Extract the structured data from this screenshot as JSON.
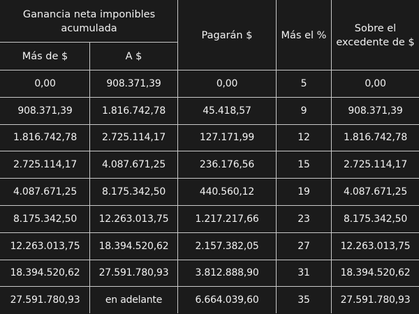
{
  "header": {
    "group_label": "Ganancia neta imponibles acumulada",
    "from_label": "Más de $",
    "to_label": "A $",
    "pay_label": "Pagarán $",
    "pct_label": "Más el %",
    "excess_label": "Sobre el excedente de $"
  },
  "rows": [
    {
      "from": "0,00",
      "to": "908.371,39",
      "pay": "0,00",
      "pct": "5",
      "excess": "0,00"
    },
    {
      "from": "908.371,39",
      "to": "1.816.742,78",
      "pay": "45.418,57",
      "pct": "9",
      "excess": "908.371,39"
    },
    {
      "from": "1.816.742,78",
      "to": "2.725.114,17",
      "pay": "127.171,99",
      "pct": "12",
      "excess": "1.816.742,78"
    },
    {
      "from": "2.725.114,17",
      "to": "4.087.671,25",
      "pay": "236.176,56",
      "pct": "15",
      "excess": "2.725.114,17"
    },
    {
      "from": "4.087.671,25",
      "to": "8.175.342,50",
      "pay": "440.560,12",
      "pct": "19",
      "excess": "4.087.671,25"
    },
    {
      "from": "8.175.342,50",
      "to": "12.263.013,75",
      "pay": "1.217.217,66",
      "pct": "23",
      "excess": "8.175.342,50"
    },
    {
      "from": "12.263.013,75",
      "to": "18.394.520,62",
      "pay": "2.157.382,05",
      "pct": "27",
      "excess": "12.263.013,75"
    },
    {
      "from": "18.394.520,62",
      "to": "27.591.780,93",
      "pay": "3.812.888,90",
      "pct": "31",
      "excess": "18.394.520,62"
    },
    {
      "from": "27.591.780,93",
      "to": "en adelante",
      "pay": "6.664.039,60",
      "pct": "35",
      "excess": "27.591.780,93"
    }
  ]
}
